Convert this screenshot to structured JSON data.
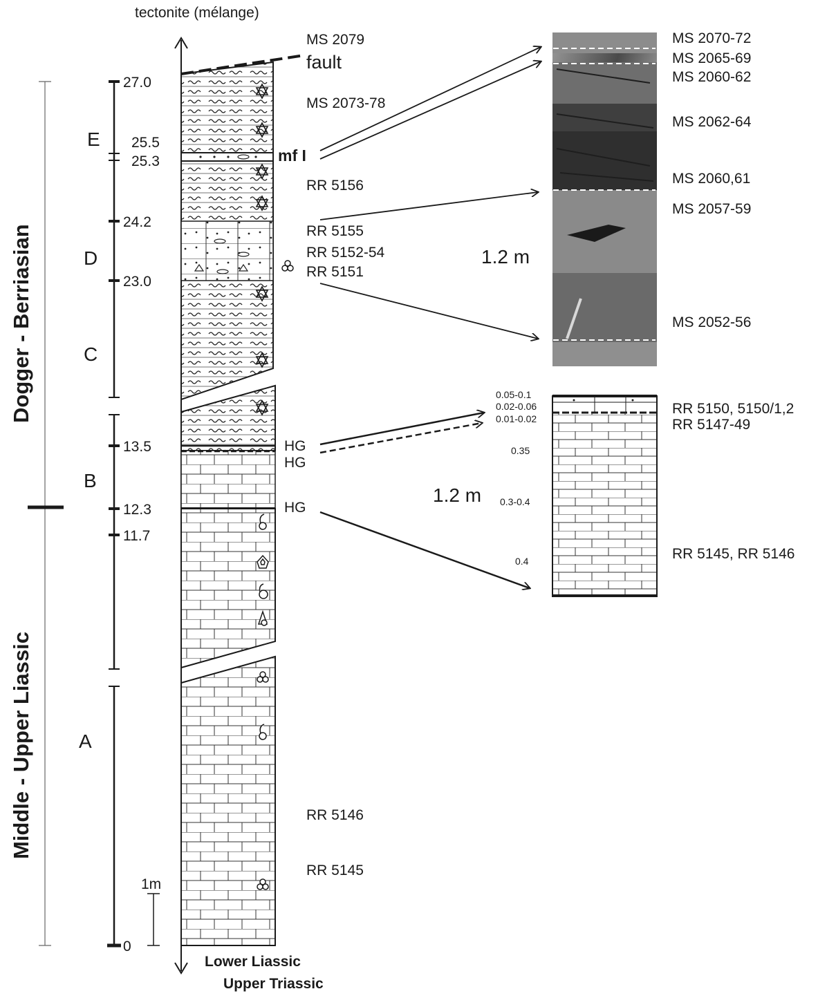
{
  "header": {
    "top_label": "tectonite (mélange)",
    "fault_label": "fault"
  },
  "footer": {
    "base_label_1": "Lower Liassic",
    "base_label_2": "Upper Triassic"
  },
  "ages": {
    "upper": "Dogger - Berriasian",
    "lower": "Middle - Upper Liassic"
  },
  "units": {
    "A": "A",
    "B": "B",
    "C": "C",
    "D": "D",
    "E": "E"
  },
  "depth_ticks": [
    "27.0",
    "25.5",
    "25.3",
    "24.2",
    "23.0",
    "13.5",
    "12.3",
    "11.7",
    "0"
  ],
  "scale_bar": "1m",
  "marker": "mf I",
  "samples_column": {
    "ms2079": "MS 2079",
    "ms2073": "MS 2073-78",
    "rr5156": "RR 5156",
    "rr5155": "RR 5155",
    "rr5152": "RR 5152-54",
    "rr5151": "RR 5151",
    "hg1": "HG",
    "hg2": "HG",
    "hg3": "HG",
    "rr5146": "RR 5146",
    "rr5145": "RR 5145"
  },
  "photo_panel": {
    "scale": "1.2 m",
    "labels": [
      "MS 2070-72",
      "MS 2065-69",
      "MS 2060-62",
      "MS 2062-64",
      "MS 2060,61",
      "MS 2057-59",
      "MS 2052-56"
    ]
  },
  "detail_panel": {
    "scale": "1.2 m",
    "thicknesses": [
      "0.05-0.1",
      "0.02-0.06",
      "0.01-0.02",
      "0.35",
      "0.3-0.4",
      "0.4"
    ],
    "labels": [
      "RR 5150, 5150/1,2",
      "RR 5147-49",
      "RR 5145, RR 5146"
    ]
  },
  "colors": {
    "ink": "#1a1a1a",
    "photo_dark": "#3a3a3a",
    "photo_mid": "#7a7a7a",
    "photo_light": "#b0b0b0"
  }
}
